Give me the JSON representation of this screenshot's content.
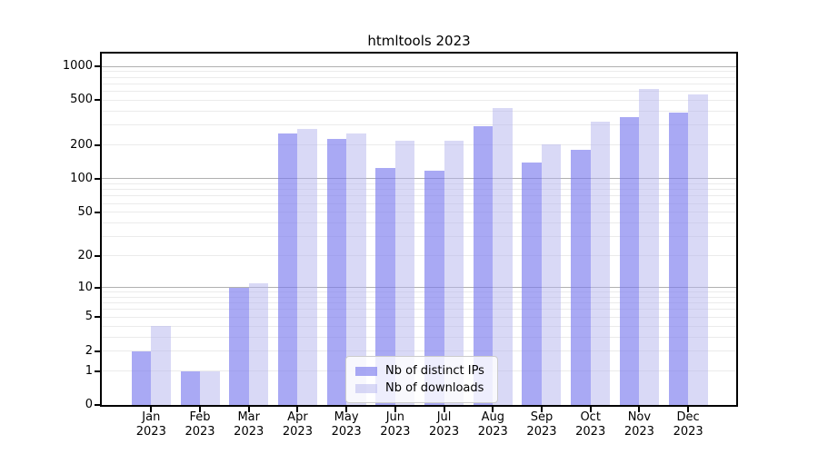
{
  "chart_data": {
    "type": "bar",
    "title": "htmltools 2023",
    "categories": [
      "Jan",
      "Feb",
      "Mar",
      "Apr",
      "May",
      "Jun",
      "Jul",
      "Aug",
      "Sep",
      "Oct",
      "Nov",
      "Dec"
    ],
    "category_year": "2023",
    "series": [
      {
        "name": "Nb of distinct IPs",
        "values": [
          2,
          1,
          10,
          252,
          228,
          125,
          117,
          296,
          140,
          181,
          357,
          391
        ],
        "color": "rgba(120, 120, 238, 0.64)"
      },
      {
        "name": "Nb of downloads",
        "values": [
          4,
          1,
          11,
          280,
          252,
          220,
          220,
          425,
          204,
          320,
          630,
          560
        ],
        "color": "rgba(180, 180, 238, 0.5)"
      }
    ],
    "yscale": "log1p",
    "ylim": [
      0,
      1297
    ],
    "ytick_values": [
      0,
      1,
      2,
      5,
      10,
      20,
      50,
      100,
      200,
      500,
      1000
    ],
    "ytick_labels": [
      "0",
      "1",
      "2",
      "5",
      "10",
      "20",
      "50",
      "100",
      "200",
      "500",
      "1000"
    ],
    "grid": {
      "major_values": [
        10,
        100,
        1000
      ],
      "minor_values": [
        1,
        2,
        3,
        4,
        5,
        6,
        7,
        8,
        9,
        20,
        30,
        40,
        50,
        60,
        70,
        80,
        90,
        200,
        300,
        400,
        500,
        600,
        700,
        800,
        900
      ],
      "major_color": "#b0b0b0",
      "minor_color": "#ebebeb"
    },
    "legend_position": "lower center",
    "spine_color": "#000000",
    "background_color": "#ffffff"
  }
}
